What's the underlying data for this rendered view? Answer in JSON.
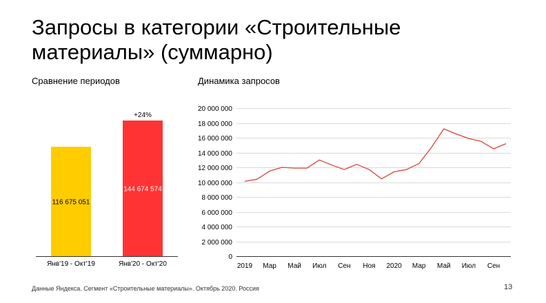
{
  "header": {
    "title": "Запросы в категории «Строительные материалы» (суммарно)"
  },
  "footer": {
    "note": "Данные Яндекса. Сегмент «Строительные материалы». Октябрь 2020. Россия",
    "page_number": "13"
  },
  "chart_data": [
    {
      "type": "bar",
      "title": "Сравнение периодов",
      "categories": [
        "Янв'19 - Окт'19",
        "Янв'20 - Окт'20"
      ],
      "values": [
        116675051,
        144674574
      ],
      "value_labels": [
        "116 675 051",
        "144 674 574"
      ],
      "growth_label": "+24%",
      "colors": [
        "#FFCC00",
        "#FF3333"
      ],
      "value_label_colors": [
        "#000000",
        "#ffffff"
      ],
      "ylim": [
        0,
        150000000
      ]
    },
    {
      "type": "line",
      "title": "Динамика запросов",
      "x": [
        "2019-01",
        "2019-02",
        "2019-03",
        "2019-04",
        "2019-05",
        "2019-06",
        "2019-07",
        "2019-08",
        "2019-09",
        "2019-10",
        "2019-11",
        "2019-12",
        "2020-01",
        "2020-02",
        "2020-03",
        "2020-04",
        "2020-05",
        "2020-06",
        "2020-07",
        "2020-08",
        "2020-09",
        "2020-10"
      ],
      "x_tick_labels": [
        "2019",
        "Мар",
        "Май",
        "Июл",
        "Сен",
        "Ноя",
        "2020",
        "Мар",
        "Май",
        "Июл",
        "Сен"
      ],
      "y_tick_labels": [
        "0",
        "2 000 000",
        "4 000 000",
        "6 000 000",
        "8 000 000",
        "10 000 000",
        "12 000 000",
        "14 000 000",
        "16 000 000",
        "18 000 000",
        "20 000 000"
      ],
      "ylim": [
        0,
        20000000
      ],
      "grid": true,
      "series": [
        {
          "color": "#D9423A",
          "values": [
            10100000,
            10400000,
            11500000,
            12000000,
            11900000,
            11900000,
            13000000,
            12300000,
            11700000,
            12400000,
            11700000,
            10450000,
            11400000,
            11700000,
            12500000,
            14700000,
            17200000,
            16500000,
            15900000,
            15500000,
            14500000,
            15200000
          ]
        }
      ]
    }
  ]
}
